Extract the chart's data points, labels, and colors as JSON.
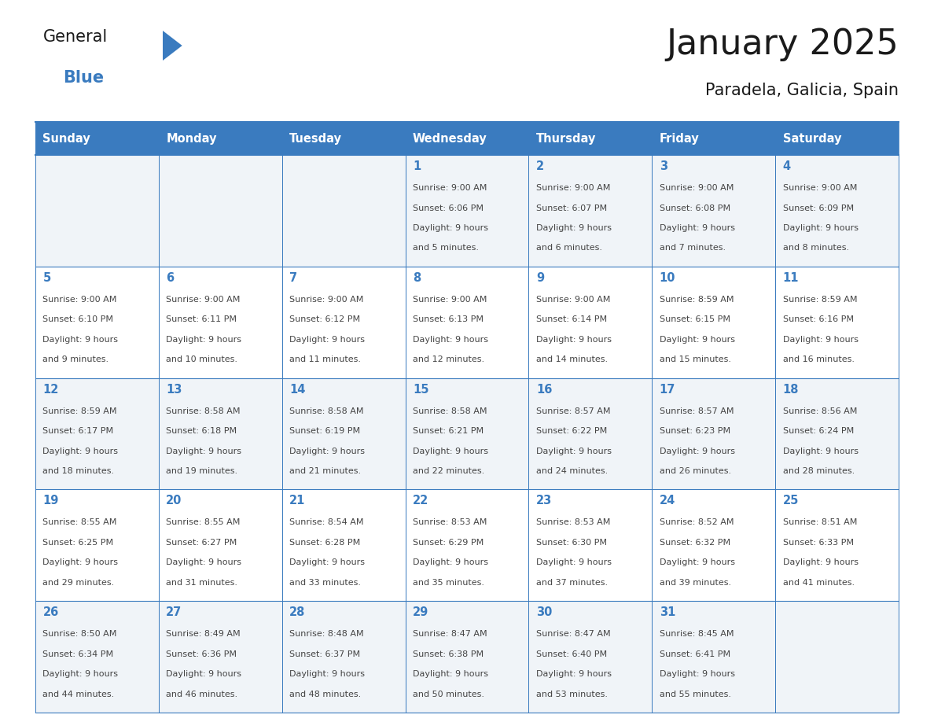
{
  "title": "January 2025",
  "subtitle": "Paradela, Galicia, Spain",
  "days_of_week": [
    "Sunday",
    "Monday",
    "Tuesday",
    "Wednesday",
    "Thursday",
    "Friday",
    "Saturday"
  ],
  "header_bg": "#3a7bbf",
  "header_text": "#ffffff",
  "cell_bg_odd": "#f0f4f8",
  "cell_bg_even": "#ffffff",
  "border_color": "#3a7bbf",
  "day_number_color": "#3a7bbf",
  "cell_text_color": "#444444",
  "title_color": "#1a1a1a",
  "subtitle_color": "#1a1a1a",
  "general_color": "#1a1a1a",
  "blue_color": "#3a7bbf",
  "weeks": [
    [
      null,
      null,
      null,
      {
        "day": 1,
        "sunrise": "9:00 AM",
        "sunset": "6:06 PM",
        "daylight": "9 hours and 5 minutes."
      },
      {
        "day": 2,
        "sunrise": "9:00 AM",
        "sunset": "6:07 PM",
        "daylight": "9 hours and 6 minutes."
      },
      {
        "day": 3,
        "sunrise": "9:00 AM",
        "sunset": "6:08 PM",
        "daylight": "9 hours and 7 minutes."
      },
      {
        "day": 4,
        "sunrise": "9:00 AM",
        "sunset": "6:09 PM",
        "daylight": "9 hours and 8 minutes."
      }
    ],
    [
      {
        "day": 5,
        "sunrise": "9:00 AM",
        "sunset": "6:10 PM",
        "daylight": "9 hours and 9 minutes."
      },
      {
        "day": 6,
        "sunrise": "9:00 AM",
        "sunset": "6:11 PM",
        "daylight": "9 hours and 10 minutes."
      },
      {
        "day": 7,
        "sunrise": "9:00 AM",
        "sunset": "6:12 PM",
        "daylight": "9 hours and 11 minutes."
      },
      {
        "day": 8,
        "sunrise": "9:00 AM",
        "sunset": "6:13 PM",
        "daylight": "9 hours and 12 minutes."
      },
      {
        "day": 9,
        "sunrise": "9:00 AM",
        "sunset": "6:14 PM",
        "daylight": "9 hours and 14 minutes."
      },
      {
        "day": 10,
        "sunrise": "8:59 AM",
        "sunset": "6:15 PM",
        "daylight": "9 hours and 15 minutes."
      },
      {
        "day": 11,
        "sunrise": "8:59 AM",
        "sunset": "6:16 PM",
        "daylight": "9 hours and 16 minutes."
      }
    ],
    [
      {
        "day": 12,
        "sunrise": "8:59 AM",
        "sunset": "6:17 PM",
        "daylight": "9 hours and 18 minutes."
      },
      {
        "day": 13,
        "sunrise": "8:58 AM",
        "sunset": "6:18 PM",
        "daylight": "9 hours and 19 minutes."
      },
      {
        "day": 14,
        "sunrise": "8:58 AM",
        "sunset": "6:19 PM",
        "daylight": "9 hours and 21 minutes."
      },
      {
        "day": 15,
        "sunrise": "8:58 AM",
        "sunset": "6:21 PM",
        "daylight": "9 hours and 22 minutes."
      },
      {
        "day": 16,
        "sunrise": "8:57 AM",
        "sunset": "6:22 PM",
        "daylight": "9 hours and 24 minutes."
      },
      {
        "day": 17,
        "sunrise": "8:57 AM",
        "sunset": "6:23 PM",
        "daylight": "9 hours and 26 minutes."
      },
      {
        "day": 18,
        "sunrise": "8:56 AM",
        "sunset": "6:24 PM",
        "daylight": "9 hours and 28 minutes."
      }
    ],
    [
      {
        "day": 19,
        "sunrise": "8:55 AM",
        "sunset": "6:25 PM",
        "daylight": "9 hours and 29 minutes."
      },
      {
        "day": 20,
        "sunrise": "8:55 AM",
        "sunset": "6:27 PM",
        "daylight": "9 hours and 31 minutes."
      },
      {
        "day": 21,
        "sunrise": "8:54 AM",
        "sunset": "6:28 PM",
        "daylight": "9 hours and 33 minutes."
      },
      {
        "day": 22,
        "sunrise": "8:53 AM",
        "sunset": "6:29 PM",
        "daylight": "9 hours and 35 minutes."
      },
      {
        "day": 23,
        "sunrise": "8:53 AM",
        "sunset": "6:30 PM",
        "daylight": "9 hours and 37 minutes."
      },
      {
        "day": 24,
        "sunrise": "8:52 AM",
        "sunset": "6:32 PM",
        "daylight": "9 hours and 39 minutes."
      },
      {
        "day": 25,
        "sunrise": "8:51 AM",
        "sunset": "6:33 PM",
        "daylight": "9 hours and 41 minutes."
      }
    ],
    [
      {
        "day": 26,
        "sunrise": "8:50 AM",
        "sunset": "6:34 PM",
        "daylight": "9 hours and 44 minutes."
      },
      {
        "day": 27,
        "sunrise": "8:49 AM",
        "sunset": "6:36 PM",
        "daylight": "9 hours and 46 minutes."
      },
      {
        "day": 28,
        "sunrise": "8:48 AM",
        "sunset": "6:37 PM",
        "daylight": "9 hours and 48 minutes."
      },
      {
        "day": 29,
        "sunrise": "8:47 AM",
        "sunset": "6:38 PM",
        "daylight": "9 hours and 50 minutes."
      },
      {
        "day": 30,
        "sunrise": "8:47 AM",
        "sunset": "6:40 PM",
        "daylight": "9 hours and 53 minutes."
      },
      {
        "day": 31,
        "sunrise": "8:45 AM",
        "sunset": "6:41 PM",
        "daylight": "9 hours and 55 minutes."
      },
      null
    ]
  ]
}
